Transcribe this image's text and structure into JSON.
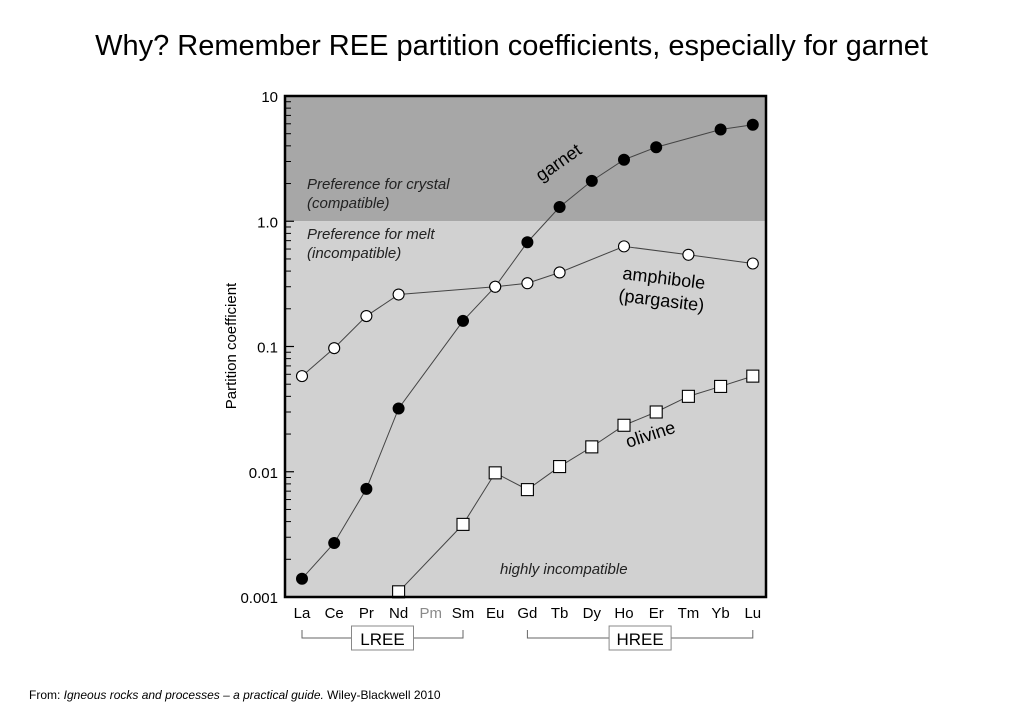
{
  "slide": {
    "title": "Why?  Remember REE partition coefficients, especially for garnet"
  },
  "citation": {
    "prefix": "From: ",
    "book": "Igneous rocks and processes – a practical guide.",
    "publisher": " Wiley-Blackwell 2010"
  },
  "chart_data": {
    "type": "line",
    "title": "",
    "xlabel": "",
    "ylabel": "Partition coefficient",
    "yscale": "log",
    "ylim": [
      0.001,
      10
    ],
    "y_ticks": [
      "10",
      "1.0",
      "0.1",
      "0.01",
      "0.001"
    ],
    "categories": [
      "La",
      "Ce",
      "Pr",
      "Nd",
      "Pm",
      "Sm",
      "Eu",
      "Gd",
      "Tb",
      "Dy",
      "Ho",
      "Er",
      "Tm",
      "Yb",
      "Lu"
    ],
    "greyed_categories": [
      "Pm"
    ],
    "regions": [
      {
        "name": "crystal",
        "range": [
          1.0,
          10
        ],
        "color": "#a7a7a7",
        "label_lines": [
          "Preference for crystal",
          "(compatible)"
        ]
      },
      {
        "name": "melt",
        "range": [
          0.001,
          1.0
        ],
        "color": "#d1d1d1",
        "label_lines": [
          "Preference for melt",
          "(incompatible)"
        ]
      }
    ],
    "groups": [
      {
        "label": "LREE",
        "from": "La",
        "to": "Sm"
      },
      {
        "label": "HREE",
        "from": "Gd",
        "to": "Lu"
      }
    ],
    "series": [
      {
        "name": "garnet",
        "marker": "filled-circle",
        "label_lines": [
          "garnet"
        ],
        "points": [
          [
            "La",
            0.0014
          ],
          [
            "Ce",
            0.0027
          ],
          [
            "Pr",
            0.0073
          ],
          [
            "Nd",
            0.032
          ],
          [
            "Sm",
            0.16
          ],
          [
            "Eu",
            0.3
          ],
          [
            "Gd",
            0.68
          ],
          [
            "Tb",
            1.3
          ],
          [
            "Dy",
            2.1
          ],
          [
            "Ho",
            3.1
          ],
          [
            "Er",
            3.9
          ],
          [
            "Yb",
            5.4
          ],
          [
            "Lu",
            5.9
          ]
        ]
      },
      {
        "name": "amphibole (pargasite)",
        "marker": "open-circle",
        "label_lines": [
          "amphibole",
          "(pargasite)"
        ],
        "points": [
          [
            "La",
            0.058
          ],
          [
            "Ce",
            0.097
          ],
          [
            "Pr",
            0.175
          ],
          [
            "Nd",
            0.26
          ],
          [
            "Eu",
            0.3
          ],
          [
            "Gd",
            0.32
          ],
          [
            "Tb",
            0.39
          ],
          [
            "Ho",
            0.63
          ],
          [
            "Tm",
            0.54
          ],
          [
            "Lu",
            0.46
          ]
        ]
      },
      {
        "name": "olivine",
        "marker": "open-square",
        "label_lines": [
          "olivine"
        ],
        "points": [
          [
            "Nd",
            0.0011
          ],
          [
            "Sm",
            0.0038
          ],
          [
            "Eu",
            0.0098
          ],
          [
            "Gd",
            0.0072
          ],
          [
            "Tb",
            0.011
          ],
          [
            "Dy",
            0.0158
          ],
          [
            "Ho",
            0.0235
          ],
          [
            "Er",
            0.03
          ],
          [
            "Tm",
            0.04
          ],
          [
            "Yb",
            0.048
          ],
          [
            "Lu",
            0.058
          ]
        ]
      }
    ],
    "annotations": [
      "highly incompatible"
    ]
  }
}
